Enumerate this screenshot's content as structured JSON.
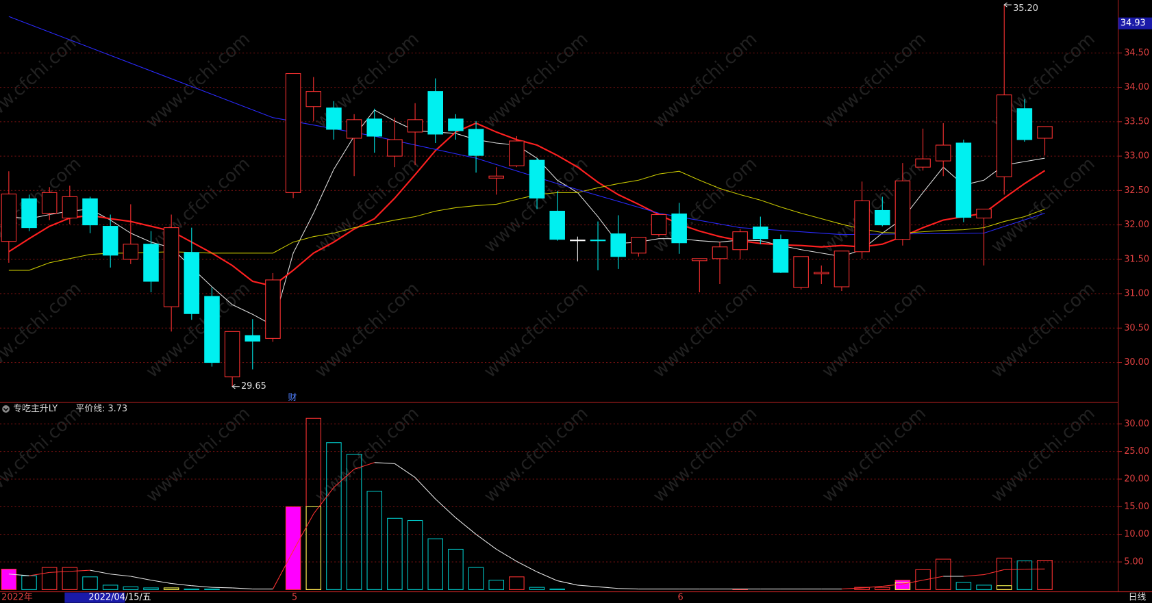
{
  "watermark": "www.cfchi.com",
  "chart_data": [
    {
      "type": "candlestick",
      "period": "日线",
      "categories": [
        "2022年",
        null,
        null,
        null,
        "2022/04/15/五",
        null,
        null,
        null,
        null,
        null,
        null,
        null,
        null,
        null,
        "5",
        null,
        null,
        null,
        null,
        null,
        null,
        null,
        null,
        null,
        null,
        null,
        null,
        null,
        null,
        null,
        null,
        null,
        null,
        "6",
        null,
        null,
        null,
        null,
        null,
        null,
        null,
        null,
        null,
        null,
        null,
        null,
        null,
        null,
        null,
        null,
        null,
        null
      ],
      "open": [
        31.76,
        32.38,
        32.17,
        32.1,
        32.38,
        31.98,
        31.5,
        31.72,
        30.81,
        31.6,
        30.96,
        29.79,
        30.39,
        30.35,
        32.47,
        33.72,
        33.7,
        33.26,
        33.54,
        33.0,
        33.35,
        33.94,
        33.54,
        33.39,
        32.68,
        32.86,
        32.94,
        32.2,
        31.78,
        31.78,
        31.87,
        31.59,
        31.86,
        32.16,
        31.48,
        31.51,
        31.64,
        31.97,
        31.79,
        31.09,
        31.29,
        31.1,
        31.61,
        32.21,
        31.79,
        32.84,
        32.93,
        33.19,
        32.1,
        32.7,
        33.69,
        33.26
      ],
      "high": [
        32.78,
        32.44,
        32.55,
        32.57,
        32.41,
        32.15,
        32.3,
        31.91,
        32.15,
        31.96,
        31.09,
        30.45,
        30.63,
        31.3,
        34.2,
        34.15,
        33.8,
        33.61,
        33.69,
        33.56,
        33.77,
        34.13,
        33.61,
        33.51,
        32.84,
        33.29,
        32.97,
        32.49,
        31.83,
        32.05,
        32.14,
        31.82,
        32.15,
        32.32,
        31.51,
        31.75,
        31.94,
        32.12,
        31.86,
        31.54,
        31.41,
        31.62,
        32.63,
        32.41,
        32.9,
        33.4,
        33.48,
        33.24,
        32.23,
        35.2,
        33.83,
        33.43
      ],
      "low": [
        31.45,
        31.91,
        32.07,
        32.01,
        31.88,
        31.38,
        31.43,
        31.02,
        30.45,
        30.62,
        29.94,
        29.65,
        29.9,
        30.3,
        32.39,
        33.51,
        33.24,
        32.71,
        33.05,
        32.84,
        32.87,
        33.19,
        33.24,
        32.76,
        32.44,
        32.84,
        32.23,
        31.77,
        31.47,
        31.34,
        31.36,
        31.54,
        31.83,
        31.58,
        31.02,
        31.14,
        31.5,
        31.72,
        31.3,
        31.06,
        31.14,
        31.04,
        31.51,
        31.98,
        31.7,
        32.79,
        32.71,
        32.04,
        31.41,
        32.44,
        33.21,
        33.01
      ],
      "close": [
        32.45,
        31.96,
        32.47,
        32.41,
        32.0,
        31.56,
        31.72,
        31.18,
        31.96,
        30.71,
        30.0,
        30.45,
        30.31,
        31.2,
        34.2,
        33.94,
        33.39,
        33.53,
        33.29,
        33.24,
        33.53,
        33.32,
        33.37,
        33.01,
        32.71,
        33.22,
        32.39,
        31.79,
        31.78,
        31.77,
        31.54,
        31.82,
        32.15,
        31.74,
        31.51,
        31.68,
        31.9,
        31.8,
        31.31,
        31.54,
        31.31,
        31.62,
        32.35,
        32.0,
        32.64,
        32.96,
        33.16,
        32.11,
        32.23,
        33.89,
        33.24,
        33.43
      ],
      "up_color": "#ff3232",
      "down_color": "#00f0f0",
      "doji_color": "#ffffff",
      "series": [
        {
          "color": "#e0e0e0",
          "width": 1,
          "values": [
            32.12,
            32.09,
            32.15,
            32.2,
            32.23,
            32.07,
            31.88,
            31.75,
            31.67,
            31.38,
            31.1,
            30.84,
            30.7,
            30.54,
            31.59,
            32.17,
            32.81,
            33.29,
            33.67,
            33.51,
            33.37,
            33.35,
            33.33,
            33.24,
            33.19,
            33.16,
            32.97,
            32.65,
            32.47,
            32.12,
            31.73,
            31.75,
            31.8,
            31.8,
            31.77,
            31.75,
            31.78,
            31.77,
            31.7,
            31.64,
            31.59,
            31.54,
            31.64,
            31.88,
            32.09,
            32.47,
            32.84,
            32.58,
            32.65,
            32.87,
            32.92,
            32.97
          ]
        },
        {
          "color": "#ff2020",
          "width": 2,
          "values": [
            31.61,
            31.8,
            31.98,
            32.1,
            32.14,
            32.09,
            32.05,
            31.98,
            31.91,
            31.75,
            31.59,
            31.41,
            31.18,
            31.11,
            31.34,
            31.59,
            31.75,
            31.94,
            32.09,
            32.39,
            32.73,
            33.08,
            33.35,
            33.48,
            33.35,
            33.24,
            33.16,
            33.01,
            32.84,
            32.62,
            32.44,
            32.3,
            32.15,
            32.01,
            31.91,
            31.83,
            31.77,
            31.73,
            31.71,
            31.7,
            31.68,
            31.7,
            31.68,
            31.72,
            31.83,
            31.96,
            32.07,
            32.12,
            32.17,
            32.39,
            32.6,
            32.79
          ]
        },
        {
          "color": "#c8c800",
          "width": 1,
          "values": [
            31.34,
            31.34,
            31.45,
            31.51,
            31.57,
            31.59,
            31.59,
            31.6,
            31.61,
            31.6,
            31.59,
            31.59,
            31.59,
            31.59,
            31.75,
            31.83,
            31.88,
            31.96,
            32.01,
            32.07,
            32.12,
            32.2,
            32.25,
            32.28,
            32.3,
            32.37,
            32.44,
            32.47,
            32.47,
            32.54,
            32.6,
            32.65,
            32.74,
            32.78,
            32.65,
            32.53,
            32.44,
            32.36,
            32.26,
            32.17,
            32.09,
            32.01,
            31.94,
            31.89,
            31.88,
            31.9,
            31.92,
            31.93,
            31.96,
            32.05,
            32.12,
            32.23
          ]
        },
        {
          "color": "#2a2aff",
          "width": 1,
          "x": [
            0,
            13,
            18,
            23,
            27,
            32,
            36,
            41,
            48,
            51
          ],
          "values": [
            35.03,
            33.56,
            33.29,
            32.97,
            32.6,
            32.17,
            31.96,
            31.86,
            31.88,
            32.17
          ]
        }
      ],
      "ylim": [
        29.42,
        35.27
      ],
      "yticks": [
        {
          "value": 30,
          "label": "30.00"
        },
        {
          "value": 30.5,
          "label": "30.50"
        },
        {
          "value": 31,
          "label": "31.00"
        },
        {
          "value": 31.5,
          "label": "31.50"
        },
        {
          "value": 32,
          "label": "32.00"
        },
        {
          "value": 32.5,
          "label": "32.50"
        },
        {
          "value": 33,
          "label": "33.00"
        },
        {
          "value": 33.5,
          "label": "33.50"
        },
        {
          "value": 34,
          "label": "34.00"
        },
        {
          "value": 34.5,
          "label": "34.50"
        }
      ],
      "grid": true,
      "grid_color": "#7a1212",
      "price_marker": {
        "value": 34.93,
        "label": "34.93"
      },
      "annotations": [
        {
          "value": 35.2,
          "label": "35.20"
        },
        {
          "value": 29.65,
          "label": "29.65"
        }
      ],
      "event_marker": "财"
    },
    {
      "type": "bar",
      "title": "专吃主升LY",
      "legend": "平价线: 3.73",
      "values": [
        3.7,
        2.5,
        4.0,
        4.0,
        2.3,
        0.8,
        0.5,
        0.3,
        0.3,
        0.1,
        0.1,
        0,
        0,
        0,
        15.0,
        31.0,
        26.6,
        24.5,
        17.8,
        12.9,
        12.5,
        9.2,
        7.3,
        4.0,
        1.7,
        2.3,
        0.4,
        0.1,
        0,
        0,
        0,
        0,
        0,
        0,
        0,
        0,
        0.1,
        0,
        0,
        0,
        0,
        0,
        0.4,
        0.4,
        1.7,
        3.6,
        5.5,
        1.3,
        0.8,
        5.7,
        5.2,
        5.3
      ],
      "colors": [
        "#ff00ff",
        "#00c8c8",
        "#ff3232",
        "#ff3232",
        "#00c8c8",
        "#00c8c8",
        "#00c8c8",
        "#00c8c8",
        "#ffff54",
        "#00c8c8",
        "#00c8c8",
        "#00c8c8",
        "#00c8c8",
        "#ff3232",
        "#ff00ff",
        "#ff3232",
        "#00c8c8",
        "#00c8c8",
        "#00c8c8",
        "#00c8c8",
        "#00c8c8",
        "#00c8c8",
        "#00c8c8",
        "#00c8c8",
        "#00c8c8",
        "#ff3232",
        "#00c8c8",
        "#00c8c8",
        "#00c8c8",
        "#00c8c8",
        "#00c8c8",
        "#ff3232",
        "#ff3232",
        "#00c8c8",
        "#ff3232",
        "#ff3232",
        "#ff3232",
        "#00c8c8",
        "#00c8c8",
        "#ff3232",
        "#ff3232",
        "#ff3232",
        "#ff3232",
        "#ff3232",
        "#ff00ff",
        "#ff3232",
        "#ff3232",
        "#00c8c8",
        "#00c8c8",
        "#ff3232",
        "#00c8c8",
        "#ff3232"
      ],
      "filled_color": "#ff00ff",
      "overlay": {
        "color": "#ffff54",
        "values": [
          null,
          null,
          null,
          null,
          null,
          null,
          null,
          null,
          null,
          null,
          null,
          null,
          null,
          null,
          null,
          15.0,
          null,
          null,
          null,
          null,
          null,
          null,
          null,
          null,
          null,
          null,
          null,
          null,
          null,
          null,
          null,
          null,
          null,
          null,
          null,
          null,
          null,
          null,
          null,
          null,
          null,
          null,
          null,
          null,
          1.3,
          null,
          null,
          null,
          null,
          0.7,
          null,
          null
        ]
      },
      "line": {
        "up_color": "#ff3232",
        "down_color": "#e8e8e8",
        "values": [
          2.8,
          2.5,
          3.1,
          3.3,
          3.5,
          2.8,
          2.4,
          1.7,
          1.1,
          0.7,
          0.4,
          0.3,
          0.1,
          0.1,
          7.0,
          13.7,
          18.5,
          21.8,
          23.0,
          22.8,
          20.3,
          16.4,
          13.0,
          10.0,
          7.3,
          5.1,
          3.2,
          1.6,
          0.8,
          0.5,
          0.2,
          0.1,
          0.1,
          0.1,
          0.1,
          0.1,
          0.1,
          0.1,
          0.1,
          0.1,
          0.1,
          0.1,
          0.3,
          0.6,
          1.0,
          1.7,
          2.4,
          2.4,
          2.7,
          3.6,
          3.7,
          3.73
        ]
      },
      "ylim": [
        0,
        33.9
      ],
      "yticks": [
        {
          "value": 5,
          "label": "5.00"
        },
        {
          "value": 10,
          "label": "10.00"
        },
        {
          "value": 15,
          "label": "15.00"
        },
        {
          "value": 20,
          "label": "20.00"
        },
        {
          "value": 25,
          "label": "25.00"
        },
        {
          "value": 30,
          "label": "30.00"
        }
      ],
      "grid": true,
      "grid_color": "#7a1212"
    }
  ]
}
